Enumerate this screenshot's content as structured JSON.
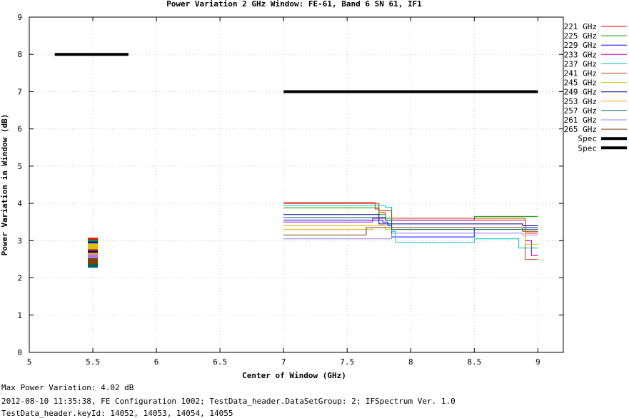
{
  "chart_data": {
    "type": "line",
    "title": "Power Variation 2 GHz Window: FE-61, Band 6 SN 61, IF1",
    "xlabel": "Center of Window (GHz)",
    "ylabel": "Power Variation in Window (dB)",
    "xlim": [
      5,
      9.2
    ],
    "ylim": [
      0,
      9
    ],
    "xticks": [
      "5",
      "5.5",
      "6",
      "6.5",
      "7",
      "7.5",
      "8",
      "8.5",
      "9"
    ],
    "yticks": [
      "0",
      "1",
      "2",
      "3",
      "4",
      "5",
      "6",
      "7",
      "8",
      "9"
    ],
    "grid": true,
    "legend_position": "right",
    "series": [
      {
        "name": "221 GHz",
        "color": "#ff0000",
        "point": [
          5.5,
          3.0
        ],
        "x": [
          7,
          7.7,
          7.72,
          7.75,
          7.8,
          8.5,
          8.88,
          8.9,
          9
        ],
        "y": [
          4.02,
          4.02,
          3.85,
          3.75,
          3.55,
          3.55,
          3.55,
          3.2,
          3.2
        ]
      },
      {
        "name": "225 GHz",
        "color": "#00a000",
        "point": [
          5.5,
          2.95
        ],
        "x": [
          7,
          7.7,
          7.75,
          7.8,
          7.85,
          8.5,
          8.88,
          9
        ],
        "y": [
          3.88,
          3.88,
          3.7,
          3.6,
          3.55,
          3.65,
          3.65,
          3.65
        ]
      },
      {
        "name": "229 GHz",
        "color": "#0000ff",
        "point": [
          5.5,
          2.9
        ],
        "x": [
          7,
          7.7,
          7.78,
          7.82,
          7.85,
          8.48,
          8.5,
          8.88,
          9
        ],
        "y": [
          3.55,
          3.55,
          3.5,
          3.4,
          3.1,
          3.1,
          3.35,
          3.35,
          3.35
        ]
      },
      {
        "name": "233 GHz",
        "color": "#c000c0",
        "point": [
          5.5,
          2.78
        ],
        "x": [
          7,
          7.65,
          7.7,
          7.8,
          8.5,
          8.88,
          8.9,
          8.95,
          9
        ],
        "y": [
          3.5,
          3.5,
          3.6,
          3.55,
          3.6,
          3.6,
          3.0,
          2.6,
          2.6
        ]
      },
      {
        "name": "237 GHz",
        "color": "#00c0c0",
        "point": [
          5.5,
          2.75
        ],
        "x": [
          7,
          7.72,
          7.8,
          7.85,
          7.88,
          8.45,
          8.5,
          8.8,
          8.85,
          9
        ],
        "y": [
          3.95,
          3.95,
          3.9,
          3.25,
          2.95,
          2.95,
          3.05,
          3.05,
          2.8,
          2.8
        ]
      },
      {
        "name": "241 GHz",
        "color": "#c04000",
        "point": [
          5.5,
          2.7
        ],
        "x": [
          7,
          7.68,
          7.75,
          7.85,
          8.5,
          8.88,
          8.9,
          9
        ],
        "y": [
          4.0,
          4.0,
          3.8,
          3.6,
          3.6,
          3.6,
          2.5,
          2.5
        ]
      },
      {
        "name": "245 GHz",
        "color": "#e0c000",
        "point": [
          5.5,
          2.85
        ],
        "x": [
          7,
          7.7,
          7.8,
          8.5,
          8.85,
          8.9,
          9
        ],
        "y": [
          3.4,
          3.4,
          3.3,
          3.3,
          3.3,
          2.9,
          2.9
        ]
      },
      {
        "name": "249 GHz",
        "color": "#000080",
        "point": [
          5.5,
          2.65
        ],
        "x": [
          7,
          7.7,
          7.75,
          8.5,
          8.88,
          9
        ],
        "y": [
          3.7,
          3.7,
          3.45,
          3.45,
          3.4,
          3.4
        ]
      },
      {
        "name": "253 GHz",
        "color": "#ffa000",
        "point": [
          5.5,
          2.6
        ],
        "x": [
          7,
          7.65,
          7.7,
          8.5,
          8.88,
          9
        ],
        "y": [
          3.3,
          3.3,
          3.35,
          3.35,
          3.3,
          3.3
        ]
      },
      {
        "name": "257 GHz",
        "color": "#006060",
        "point": [
          5.5,
          2.35
        ],
        "x": [
          7,
          7.7,
          7.8,
          7.85,
          8.5,
          8.88,
          9
        ],
        "y": [
          3.62,
          3.62,
          3.55,
          3.3,
          3.3,
          3.3,
          3.3
        ]
      },
      {
        "name": "261 GHz",
        "color": "#a080ff",
        "point": [
          5.5,
          2.55
        ],
        "x": [
          7,
          7.7,
          7.85,
          8.5,
          8.88,
          9
        ],
        "y": [
          3.05,
          3.05,
          3.2,
          3.2,
          3.15,
          3.15
        ]
      },
      {
        "name": "265 GHz",
        "color": "#804000",
        "point": [
          5.5,
          2.45
        ],
        "x": [
          7,
          7.6,
          7.65,
          8.5,
          8.88,
          9
        ],
        "y": [
          3.15,
          3.15,
          3.35,
          3.35,
          3.25,
          3.25
        ]
      }
    ],
    "spec_lines": [
      {
        "name": "Spec",
        "color": "#000000",
        "x": [
          5.2,
          5.78
        ],
        "y": [
          8,
          8
        ]
      },
      {
        "name": "Spec",
        "color": "#000000",
        "x": [
          7,
          9
        ],
        "y": [
          7,
          7
        ]
      }
    ]
  },
  "footer": {
    "line1": "Max Power Variation: 4.02 dB",
    "line2": "2012-08-10 11:35:38, FE Configuration 1002; TestData_header.DataSetGroup: 2; IFSpectrum Ver. 1.0",
    "line3": "TestData_header.keyId: 14052, 14053, 14054, 14055"
  }
}
